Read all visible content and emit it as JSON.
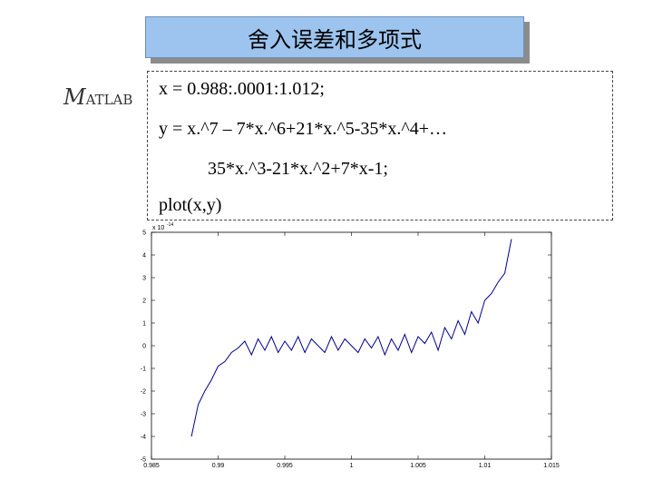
{
  "slide": {
    "title": "舍入误差和多项式",
    "logo": {
      "first_letter": "M",
      "rest": "ATLAB"
    },
    "code_lines": [
      "x = 0.988:.0001:1.012;",
      "y = x.^7 – 7*x.^6+21*x.^5-35*x.^4+…",
      "35*x.^3-21*x.^2+7*x-1;",
      "plot(x,y)"
    ]
  },
  "colors": {
    "title_fill": "#9cc4ef",
    "line": "#00008b"
  },
  "chart_data": {
    "type": "line",
    "title": "",
    "xlabel": "",
    "ylabel": "",
    "exponent_label": "x 10",
    "exponent_power": "-14",
    "xlim": [
      0.985,
      1.015
    ],
    "ylim": [
      -5,
      5
    ],
    "x_ticks": [
      0.985,
      0.99,
      0.995,
      1,
      1.005,
      1.01,
      1.015
    ],
    "x_tick_labels": [
      "0.985",
      "0.99",
      "0.995",
      "1",
      "1.005",
      "1.01",
      "1.015"
    ],
    "y_ticks": [
      -5,
      -4,
      -3,
      -2,
      -1,
      0,
      1,
      2,
      3,
      4,
      5
    ],
    "y_tick_labels": [
      "-5",
      "-4",
      "-3",
      "-2",
      "-1",
      "0",
      "1",
      "2",
      "3",
      "4",
      "5"
    ],
    "grid": false,
    "series": [
      {
        "x": [
          0.988,
          0.9885,
          0.989,
          0.9895,
          0.99,
          0.9905,
          0.991,
          0.9915,
          0.992,
          0.9925,
          0.993,
          0.9935,
          0.994,
          0.9945,
          0.995,
          0.9955,
          0.996,
          0.9965,
          0.997,
          0.9975,
          0.998,
          0.9985,
          0.999,
          0.9995,
          1.0,
          1.0005,
          1.001,
          1.0015,
          1.002,
          1.0025,
          1.003,
          1.0035,
          1.004,
          1.0045,
          1.005,
          1.0055,
          1.006,
          1.0065,
          1.007,
          1.0075,
          1.008,
          1.0085,
          1.009,
          1.0095,
          1.01,
          1.0105,
          1.011,
          1.0115,
          1.012
        ],
        "y": [
          -4.0,
          -2.6,
          -2.0,
          -1.5,
          -0.9,
          -0.7,
          -0.3,
          -0.1,
          0.2,
          -0.4,
          0.3,
          -0.2,
          0.4,
          -0.3,
          0.2,
          -0.2,
          0.4,
          -0.3,
          0.3,
          0.0,
          -0.3,
          0.4,
          -0.2,
          0.3,
          0.0,
          -0.3,
          0.3,
          -0.1,
          0.4,
          -0.4,
          0.3,
          -0.2,
          0.5,
          -0.3,
          0.4,
          0.1,
          0.6,
          -0.2,
          0.8,
          0.3,
          1.1,
          0.5,
          1.5,
          1.0,
          2.0,
          2.3,
          2.8,
          3.2,
          4.7
        ]
      }
    ]
  }
}
